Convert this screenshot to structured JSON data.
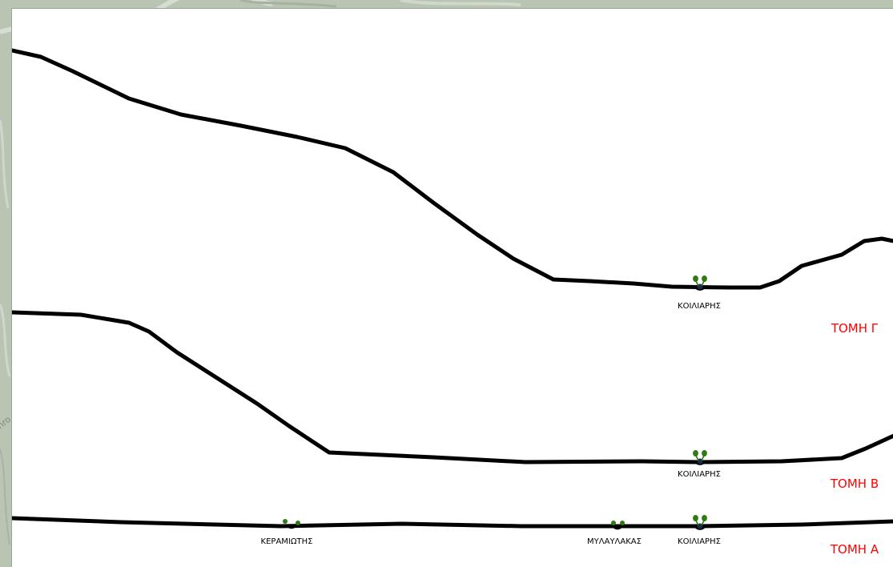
{
  "colors": {
    "profile": "#000000",
    "section_label": "#ff0000",
    "tree": "#2f7a12",
    "map": "#b9c4b3"
  },
  "map": {
    "edge_text": "nro"
  },
  "sections": [
    {
      "label": "ΤΟΜΗ Γ",
      "markers": [
        {
          "label": "ΚΟΙΛΙΑΡΗΣ",
          "icon": "tree-icon"
        }
      ]
    },
    {
      "label": "ΤΟΜΗ Β",
      "markers": [
        {
          "label": "ΚΟΙΛΙΑΡΗΣ",
          "icon": "tree-icon"
        }
      ]
    },
    {
      "label": "ΤΟΜΗ Α",
      "markers": [
        {
          "label": "ΚΕΡΑΜΙΩΤΗΣ",
          "icon": "tree-icon"
        },
        {
          "label": "ΜΥΛΑΥΛΑΚΑΣ",
          "icon": "tree-icon"
        },
        {
          "label": "ΚΟΙΛΙΑΡΗΣ",
          "icon": "tree-icon"
        }
      ]
    }
  ]
}
